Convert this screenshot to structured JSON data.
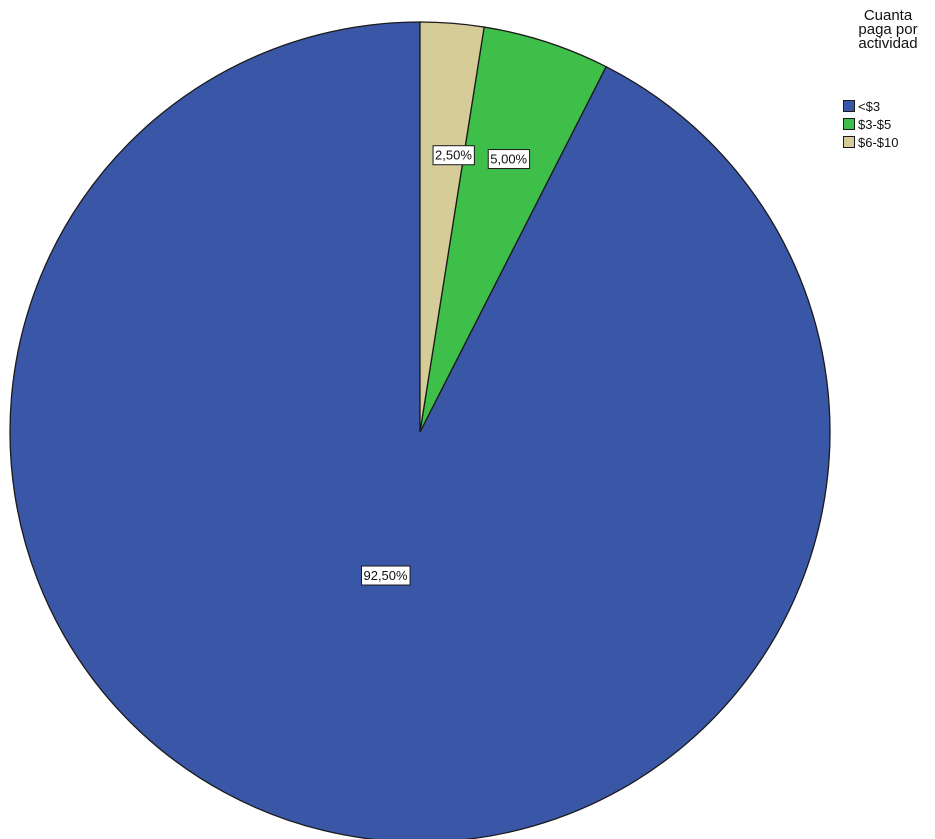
{
  "chart_data": {
    "type": "pie",
    "title": "",
    "legend": {
      "title": "Cuanta\npaga por\nactividad",
      "placement": "top-right"
    },
    "slices": [
      {
        "name": "<$3",
        "value": 92.5,
        "label": "92,50%",
        "color": "#3a57a7"
      },
      {
        "name": "$3-$5",
        "value": 5.0,
        "label": "5,00%",
        "color": "#3dbf4a"
      },
      {
        "name": "$6-$10",
        "value": 2.5,
        "label": "2,50%",
        "color": "#d6cc98"
      }
    ],
    "start_angle_deg": 0,
    "direction": "counterclockwise"
  }
}
